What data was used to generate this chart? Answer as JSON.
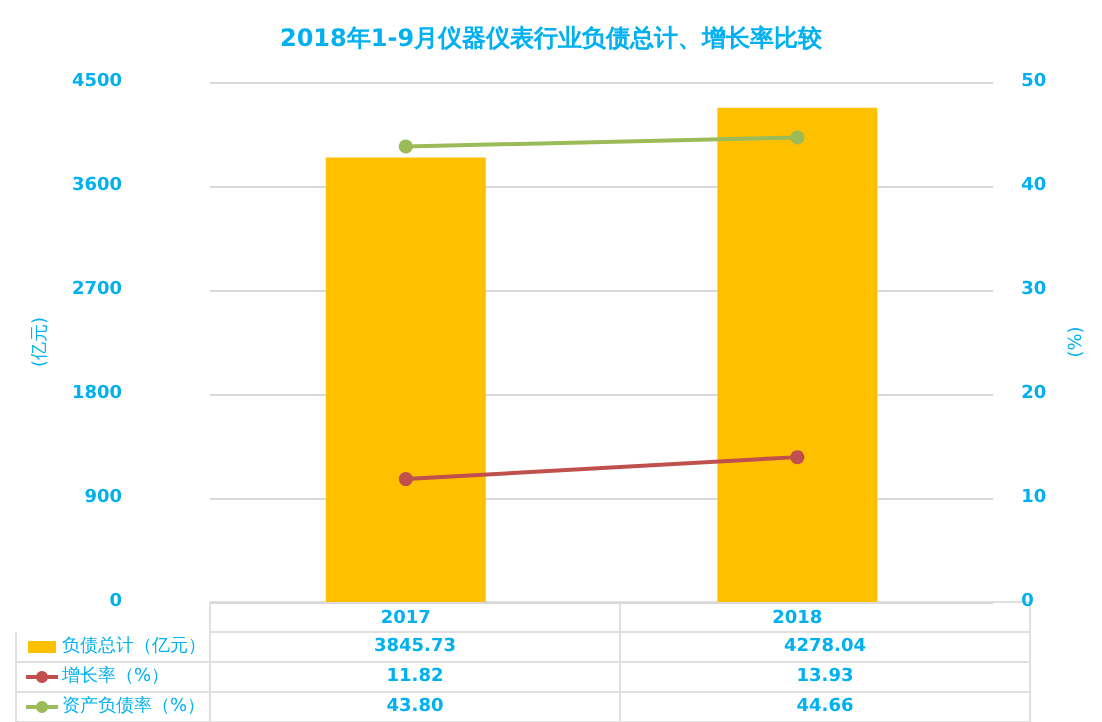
{
  "chart_data": {
    "type": "bar",
    "title": "2018年1-9月仪器仪表行业负债总计、增长率比较",
    "ylabel": "(亿元)",
    "y2label": "(%)",
    "categories": [
      "2017",
      "2018"
    ],
    "series": [
      {
        "name": "负债总计（亿元）",
        "color": "#ffc000",
        "values": [
          3845.73,
          4278.04
        ],
        "value_labels": [
          "3845.73",
          "4278.04"
        ]
      },
      {
        "name": "增长率（%）",
        "type": "line",
        "axis": "y2",
        "color": "#c0504d",
        "values": [
          11.82,
          13.93
        ],
        "value_labels": [
          "11.82",
          "13.93"
        ]
      },
      {
        "name": "资产负债率（%）",
        "type": "line",
        "axis": "y2",
        "color": "#9bbb59",
        "values": [
          43.8,
          44.66
        ],
        "value_labels": [
          "43.80",
          "44.66"
        ]
      }
    ],
    "ylim": [
      0,
      4500
    ],
    "yticks": [
      0,
      900,
      1800,
      2700,
      3600,
      4500
    ],
    "y2lim": [
      0,
      50
    ],
    "y2ticks": [
      0,
      10,
      20,
      30,
      40,
      50
    ],
    "grid": "y",
    "marker": "circle",
    "legend": "bottom left"
  }
}
